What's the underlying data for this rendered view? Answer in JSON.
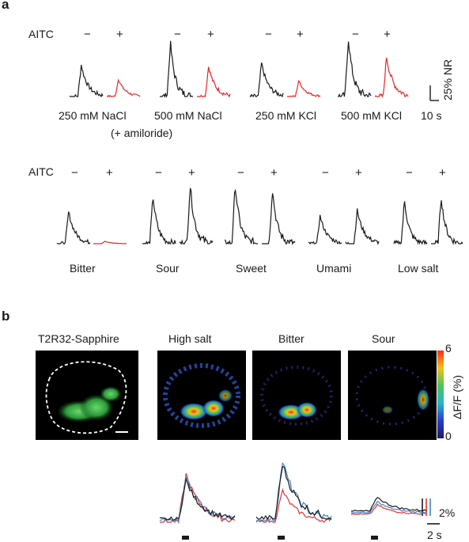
{
  "panel_a": {
    "label": "a",
    "row1": {
      "condition_label": "AITC",
      "minus": "−",
      "plus": "+",
      "groups": [
        {
          "label": "250 mM NaCl",
          "sublabel": "(+ amiloride)"
        },
        {
          "label": "500 mM NaCl"
        },
        {
          "label": "250 mM KCl"
        },
        {
          "label": "500 mM KCl"
        }
      ],
      "scale_y": "25% NR",
      "scale_x": "10 s"
    },
    "row2": {
      "condition_label": "AITC",
      "minus": "−",
      "plus": "+",
      "groups": [
        {
          "label": "Bitter"
        },
        {
          "label": "Sour"
        },
        {
          "label": "Sweet"
        },
        {
          "label": "Umami"
        },
        {
          "label": "Low salt"
        }
      ]
    }
  },
  "panel_b": {
    "label": "b",
    "image_titles": [
      "T2R32-Sapphire",
      "High salt",
      "Bitter",
      "Sour"
    ],
    "colorbar": {
      "max": "6",
      "min": "0",
      "label": "ΔF/F (%)"
    },
    "scale_y": "2%",
    "scale_x": "2 s"
  },
  "colors": {
    "minus_trace": "#1a1a1a",
    "plus_trace": "#e8262a",
    "blue_trace": "#3a86c8",
    "red_trace": "#e0352f"
  }
}
